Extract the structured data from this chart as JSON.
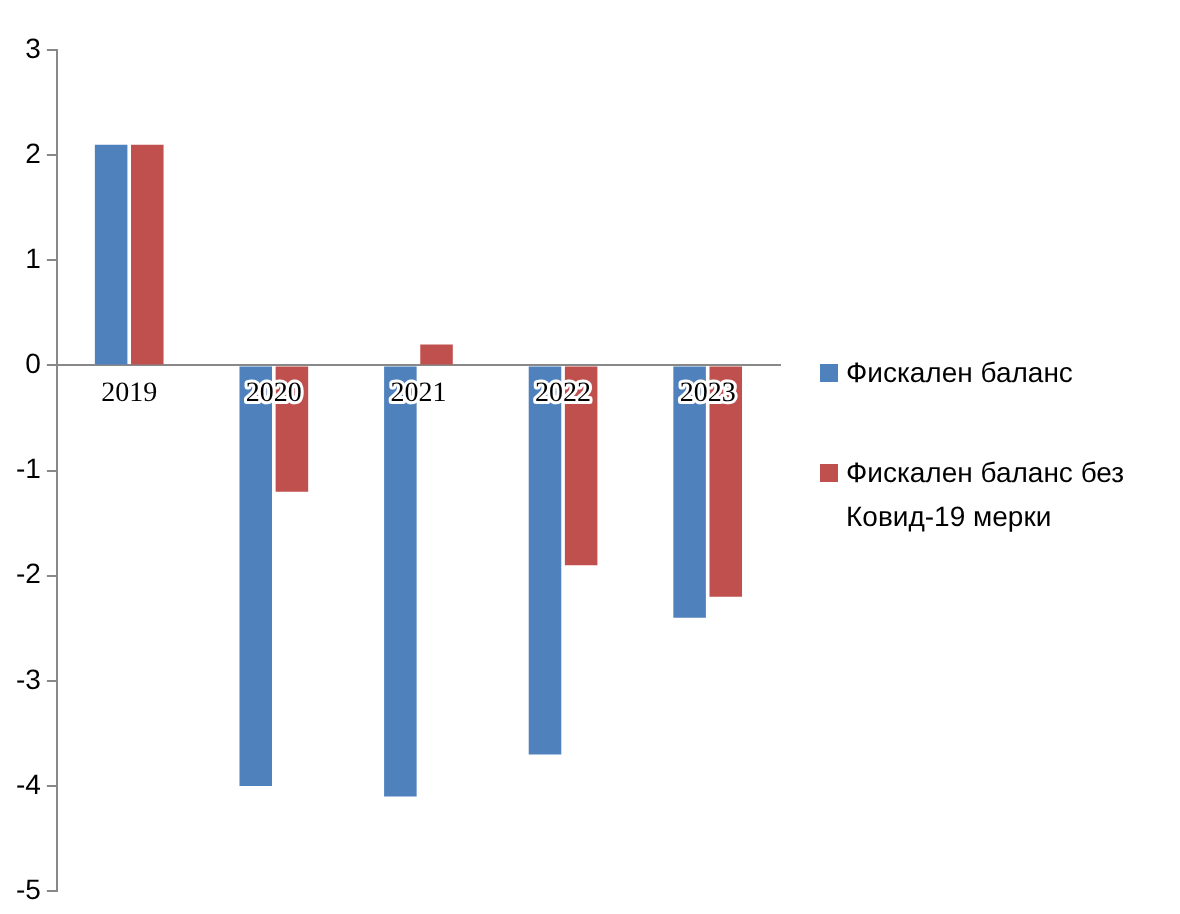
{
  "chart_data": {
    "type": "bar",
    "categories": [
      "2019",
      "2020",
      "2021",
      "2022",
      "2023"
    ],
    "series": [
      {
        "name": "Фискален баланс",
        "color": "#4f81bd",
        "values": [
          2.1,
          -4.0,
          -4.1,
          -3.7,
          -2.4
        ]
      },
      {
        "name": "Фискален баланс без Ковид-19 мерки",
        "color": "#c0504d",
        "values": [
          2.1,
          -1.2,
          0.2,
          -1.9,
          -2.2
        ]
      }
    ],
    "ylim": [
      -5,
      3
    ],
    "yticks": [
      -5,
      -4,
      -3,
      -2,
      -1,
      0,
      1,
      2,
      3
    ],
    "grid": false,
    "legend": "right"
  }
}
